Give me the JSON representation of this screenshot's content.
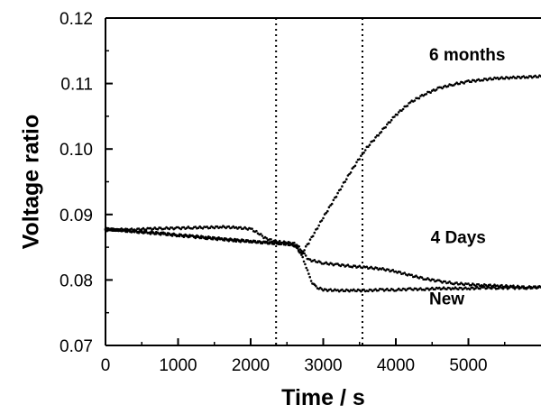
{
  "chart_data": {
    "type": "scatter",
    "title": "",
    "xlabel": "Time / s",
    "ylabel": "Voltage ratio",
    "xlim": [
      0,
      6000
    ],
    "ylim": [
      0.07,
      0.12
    ],
    "xticks": [
      0,
      1000,
      2000,
      3000,
      4000,
      5000
    ],
    "xtick_labels": [
      "0",
      "1000",
      "2000",
      "3000",
      "4000",
      "5000"
    ],
    "yticks": [
      0.07,
      0.08,
      0.09,
      0.1,
      0.11,
      0.12
    ],
    "ytick_labels": [
      "0.07",
      "0.08",
      "0.09",
      "0.10",
      "0.11",
      "0.12"
    ],
    "grid": false,
    "legend": "none",
    "vertical_markers": [
      2350,
      3540
    ],
    "annotations": [
      {
        "text": "6 months",
        "x": 4460,
        "y": 0.1135
      },
      {
        "text": "4 Days",
        "x": 4480,
        "y": 0.0856
      },
      {
        "text": "New",
        "x": 4460,
        "y": 0.0763
      }
    ],
    "series": [
      {
        "color": "#000000",
        "x": [
          0,
          200,
          400,
          600,
          800,
          1000,
          1200,
          1400,
          1600,
          1800,
          2000,
          2200,
          2400,
          2500,
          2600,
          2650,
          2700,
          2750,
          2800,
          2850,
          2900,
          3000,
          3200,
          3400,
          3600,
          3800,
          4000,
          4200,
          4400,
          4600,
          4800,
          5000,
          5200,
          5400,
          5600,
          5800,
          6000
        ],
        "y": [
          0.0878,
          0.0876,
          0.0874,
          0.0873,
          0.0871,
          0.0869,
          0.0867,
          0.0865,
          0.0863,
          0.0861,
          0.0859,
          0.0857,
          0.0856,
          0.0855,
          0.0852,
          0.0848,
          0.0838,
          0.0825,
          0.0808,
          0.0796,
          0.0789,
          0.0785,
          0.0784,
          0.0784,
          0.0784,
          0.0785,
          0.0785,
          0.0786,
          0.0786,
          0.0787,
          0.0787,
          0.0787,
          0.0788,
          0.0788,
          0.0788,
          0.0788,
          0.0789
        ]
      },
      {
        "color": "#000000",
        "x": [
          0,
          200,
          400,
          600,
          800,
          1000,
          1200,
          1400,
          1600,
          1800,
          2000,
          2100,
          2200,
          2300,
          2400,
          2500,
          2600,
          2650,
          2700,
          2800,
          3000,
          3200,
          3400,
          3600,
          3800,
          4000,
          4200,
          4400,
          4600,
          4800,
          5000,
          5200,
          5400,
          5600,
          5800,
          6000
        ],
        "y": [
          0.0876,
          0.0877,
          0.0877,
          0.0878,
          0.0879,
          0.0879,
          0.088,
          0.088,
          0.0881,
          0.088,
          0.0878,
          0.0872,
          0.0864,
          0.086,
          0.0858,
          0.0857,
          0.0856,
          0.0852,
          0.0845,
          0.0831,
          0.0826,
          0.0823,
          0.0821,
          0.0819,
          0.0817,
          0.0813,
          0.0807,
          0.0802,
          0.0798,
          0.0795,
          0.0793,
          0.0792,
          0.0791,
          0.079,
          0.0789,
          0.0789
        ]
      },
      {
        "color": "#000000",
        "x": [
          0,
          200,
          400,
          600,
          800,
          1000,
          1200,
          1400,
          1600,
          1800,
          2000,
          2200,
          2400,
          2500,
          2600,
          2700,
          2800,
          2900,
          3000,
          3100,
          3200,
          3300,
          3400,
          3500,
          3600,
          3800,
          4000,
          4200,
          4400,
          4600,
          4800,
          5000,
          5200,
          5400,
          5600,
          5800,
          6000
        ],
        "y": [
          0.0878,
          0.0876,
          0.0874,
          0.0872,
          0.087,
          0.0868,
          0.0866,
          0.0864,
          0.0862,
          0.086,
          0.0859,
          0.0857,
          0.0856,
          0.0855,
          0.0854,
          0.084,
          0.0857,
          0.0876,
          0.0895,
          0.0914,
          0.0932,
          0.0951,
          0.0969,
          0.0986,
          0.1002,
          0.1027,
          0.1052,
          0.1071,
          0.1084,
          0.1093,
          0.1099,
          0.1103,
          0.1106,
          0.1108,
          0.1109,
          0.111,
          0.1111
        ]
      }
    ]
  }
}
